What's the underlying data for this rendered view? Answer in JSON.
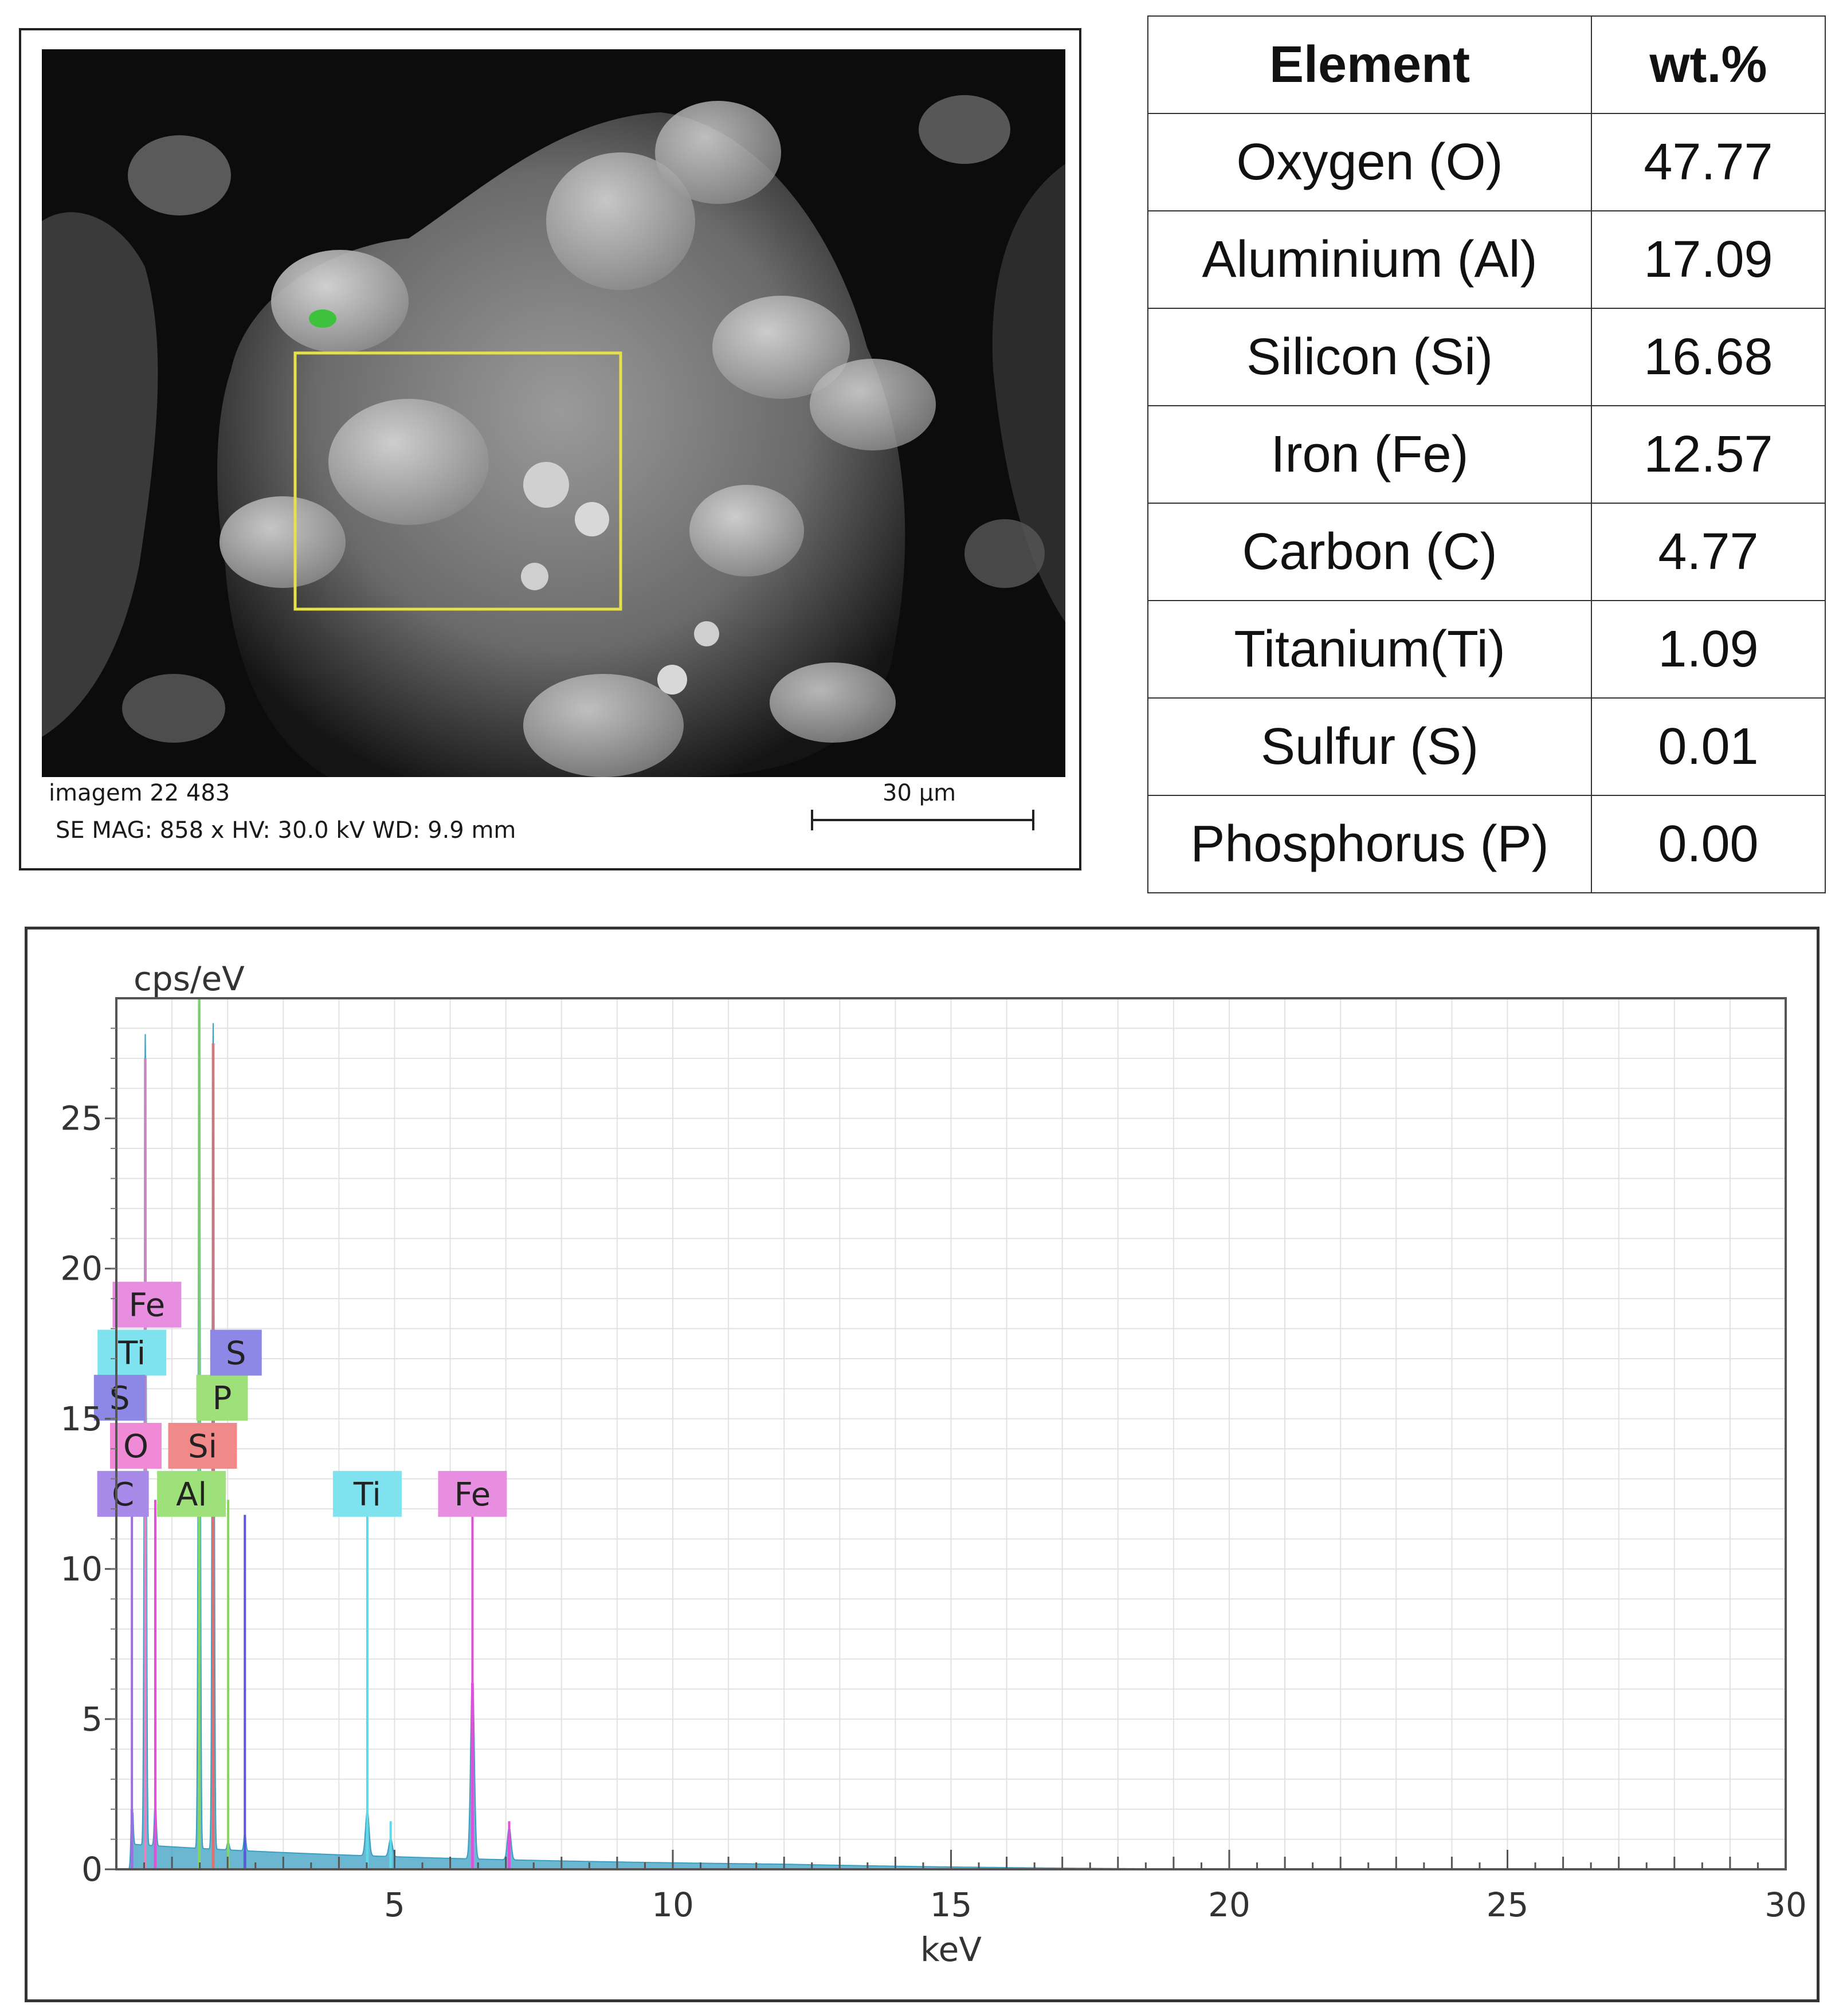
{
  "sem": {
    "caption_line1": "imagem 22 483",
    "caption_line2": "SE  MAG: 858 x HV: 30.0 kV WD: 9.9 mm",
    "scale_label": "30 µm",
    "roi_color": "#e6e04a"
  },
  "table": {
    "header_element": "Element",
    "header_wt": "wt.%",
    "rows": [
      {
        "element": "Oxygen (O)",
        "wt": "47.77"
      },
      {
        "element": "Aluminium (Al)",
        "wt": "17.09"
      },
      {
        "element": "Silicon (Si)",
        "wt": "16.68"
      },
      {
        "element": "Iron (Fe)",
        "wt": "12.57"
      },
      {
        "element": "Carbon (C)",
        "wt": "4.77"
      },
      {
        "element": "Titanium(Ti)",
        "wt": "1.09"
      },
      {
        "element": "Sulfur (S)",
        "wt": "0.01"
      },
      {
        "element": "Phosphorus (P)",
        "wt": "0.00"
      }
    ]
  },
  "chart_data": {
    "type": "line",
    "xlabel": "keV",
    "ylabel": "cps/eV",
    "xlim": [
      0,
      30
    ],
    "ylim": [
      0,
      29
    ],
    "xticks": [
      5,
      10,
      15,
      20,
      25,
      30
    ],
    "yticks": [
      0,
      5,
      10,
      15,
      20,
      25
    ],
    "grid": true,
    "spectrum_color": "#3a9fc2",
    "peaks": [
      {
        "element": "C",
        "x": 0.28,
        "y": 2.0,
        "color": "#9b6fe0"
      },
      {
        "element": "O",
        "x": 0.52,
        "y": 27.0,
        "color": "#e880c0"
      },
      {
        "element": "Fe L",
        "x": 0.7,
        "y": 1.5,
        "color": "#e050d8"
      },
      {
        "element": "Al",
        "x": 1.49,
        "y": 29.0,
        "color": "#86d65e"
      },
      {
        "element": "Si",
        "x": 1.74,
        "y": 27.5,
        "color": "#e07070"
      },
      {
        "element": "P",
        "x": 2.01,
        "y": 0.3,
        "color": "#86d65e"
      },
      {
        "element": "S",
        "x": 2.31,
        "y": 0.6,
        "color": "#5a5ad8"
      },
      {
        "element": "Ti",
        "x": 4.51,
        "y": 1.5,
        "color": "#5fd8e8"
      },
      {
        "element": "Ti Kb",
        "x": 4.93,
        "y": 0.6,
        "color": "#5fd8e8"
      },
      {
        "element": "Fe",
        "x": 6.4,
        "y": 6.2,
        "color": "#e050d8"
      },
      {
        "element": "Fe Kb",
        "x": 7.06,
        "y": 1.1,
        "color": "#e050d8"
      }
    ],
    "marker_lines": [
      {
        "x": 0.28,
        "top": 12.3,
        "color": "#9b6fe0"
      },
      {
        "x": 0.52,
        "top": 14.0,
        "color": "#e880c0"
      },
      {
        "x": 0.7,
        "top": 12.3,
        "color": "#e050d8"
      },
      {
        "x": 1.49,
        "top": 12.3,
        "color": "#86d65e"
      },
      {
        "x": 1.74,
        "top": 14.0,
        "color": "#e07070"
      },
      {
        "x": 2.01,
        "top": 12.3,
        "color": "#86d65e"
      },
      {
        "x": 2.31,
        "top": 11.8,
        "color": "#5a5ad8"
      },
      {
        "x": 4.51,
        "top": 12.3,
        "color": "#5fd8e8"
      },
      {
        "x": 4.93,
        "top": 1.6,
        "color": "#5fd8e8"
      },
      {
        "x": 6.4,
        "top": 12.3,
        "color": "#e050d8"
      },
      {
        "x": 7.06,
        "top": 1.6,
        "color": "#e050d8"
      }
    ],
    "peak_labels": [
      {
        "text": "Fe",
        "x": 0.55,
        "y": 18.8,
        "color": "#e88ee0"
      },
      {
        "text": "Ti",
        "x": 0.28,
        "y": 17.2,
        "color": "#7fe3ef"
      },
      {
        "text": "S",
        "x": 0.06,
        "y": 15.7,
        "color": "#8d87e6"
      },
      {
        "text": "O",
        "x": 0.35,
        "y": 14.1,
        "color": "#f08ad6"
      },
      {
        "text": "C",
        "x": 0.12,
        "y": 12.5,
        "color": "#a88ae8"
      },
      {
        "text": "Si",
        "x": 1.55,
        "y": 14.1,
        "color": "#f08a8a"
      },
      {
        "text": "Al",
        "x": 1.35,
        "y": 12.5,
        "color": "#9ee07a"
      },
      {
        "text": "P",
        "x": 1.9,
        "y": 15.7,
        "color": "#9ee07a"
      },
      {
        "text": "S",
        "x": 2.15,
        "y": 17.2,
        "color": "#8d87e6"
      },
      {
        "text": "Ti",
        "x": 4.51,
        "y": 12.5,
        "color": "#7fe3ef"
      },
      {
        "text": "Fe",
        "x": 6.4,
        "y": 12.5,
        "color": "#e88ee0"
      }
    ]
  }
}
